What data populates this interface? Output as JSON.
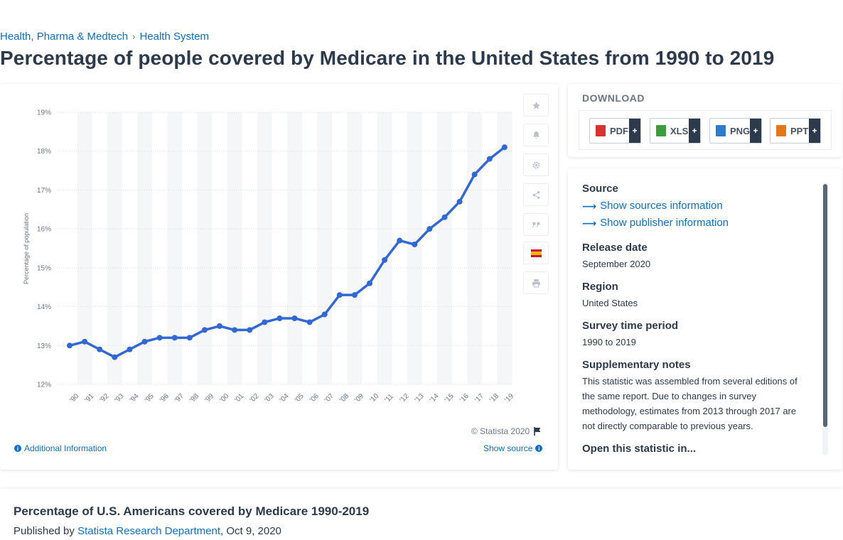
{
  "breadcrumb": {
    "item1": "Health, Pharma & Medtech",
    "separator": "›",
    "item2": "Health System"
  },
  "page_title": "Percentage of people covered by Medicare in the United States from 1990 to 2019",
  "chart": {
    "copyright": "© Statista 2020",
    "additional_info": "Additional Information",
    "show_source": "Show source",
    "line_color": "#3168d6",
    "toolbar_icons": [
      "star-icon",
      "bell-icon",
      "gear-icon",
      "share-icon",
      "quote-icon",
      "spain-flag-icon",
      "print-icon"
    ]
  },
  "chart_data": {
    "type": "line",
    "ylabel": "Percentage of population",
    "ylim": [
      12,
      19
    ],
    "yticks": [
      "12%",
      "13%",
      "14%",
      "15%",
      "16%",
      "17%",
      "18%",
      "19%"
    ],
    "categories": [
      "'90",
      "'91",
      "'92",
      "'93",
      "'94",
      "'95",
      "'96",
      "'97",
      "'98",
      "'99",
      "'00",
      "'01",
      "'02",
      "'03",
      "'04",
      "'05",
      "'06",
      "'07",
      "'08",
      "'09",
      "'10",
      "'11",
      "'12",
      "'13",
      "'14",
      "'15",
      "'16",
      "'17",
      "'18",
      "'19"
    ],
    "series": [
      {
        "values": [
          13.0,
          13.1,
          12.9,
          12.7,
          12.9,
          13.1,
          13.2,
          13.2,
          13.2,
          13.4,
          13.5,
          13.4,
          13.4,
          13.6,
          13.7,
          13.7,
          13.6,
          13.8,
          14.3,
          14.3,
          14.6,
          15.2,
          15.7,
          15.6,
          16.0,
          16.3,
          16.7,
          17.4,
          17.8,
          18.1
        ]
      }
    ],
    "grid": true,
    "legend": "none"
  },
  "download": {
    "title": "DOWNLOAD",
    "buttons": [
      {
        "label": "PDF",
        "plus": "+",
        "color": "#d9322f"
      },
      {
        "label": "XLS",
        "plus": "+",
        "color": "#3b9e3b"
      },
      {
        "label": "PNG",
        "plus": "+",
        "color": "#2e7ccf"
      },
      {
        "label": "PPT",
        "plus": "+",
        "color": "#e5771b"
      }
    ]
  },
  "details": {
    "source_heading": "Source",
    "show_sources": "Show sources information",
    "show_publisher": "Show publisher information",
    "release_heading": "Release date",
    "release_value": "September 2020",
    "region_heading": "Region",
    "region_value": "United States",
    "survey_heading": "Survey time period",
    "survey_value": "1990 to 2019",
    "supp_heading": "Supplementary notes",
    "supp_value": "This statistic was assembled from several editions of the same report. Due to changes in survey methodology, estimates from 2013 through 2017 are not directly comparable to previous years.",
    "open_heading": "Open this statistic in..."
  },
  "bottom": {
    "title": "Percentage of U.S. Americans covered by Medicare 1990-2019",
    "published_by": "Published by",
    "publisher": "Statista Research Department",
    "date": ", Oct 9, 2020"
  }
}
